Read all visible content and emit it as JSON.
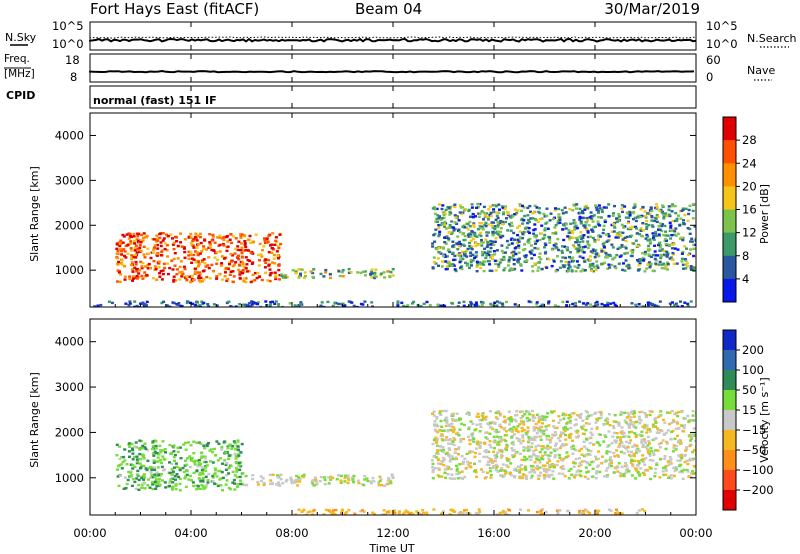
{
  "header": {
    "station": "Fort Hays East (fitACF)",
    "beam": "Beam 04",
    "date": "30/Mar/2019"
  },
  "sky_panel": {
    "left_label": "N.Sky",
    "right_label": "N.Search",
    "left_ticks": [
      "10^5",
      "10^0"
    ],
    "right_ticks": [
      "10^5",
      "10^0"
    ]
  },
  "freq_panel": {
    "left_label_1": "Freq.",
    "left_label_2": "[MHz]",
    "right_label": "Nave",
    "left_ticks": [
      "18",
      "8"
    ],
    "right_ticks": [
      "60",
      "0"
    ]
  },
  "cpid_panel": {
    "label": "CPID",
    "mode_text": "normal (fast) 151 IF"
  },
  "x_axis": {
    "label": "Time UT",
    "ticks": [
      "00:00",
      "04:00",
      "08:00",
      "12:00",
      "16:00",
      "20:00",
      "00:00"
    ]
  },
  "power_colorbar": {
    "label": "Power [dB]",
    "tick_labels": [
      "28",
      "24",
      "20",
      "16",
      "12",
      "8",
      "4"
    ],
    "colors": [
      "#e00000",
      "#ff5000",
      "#ff9000",
      "#f5c518",
      "#7cc44c",
      "#3c9a6a",
      "#2a58a0",
      "#0818e8"
    ]
  },
  "velocity_colorbar": {
    "label": "Velocity [m s⁻¹]",
    "tick_labels": [
      "200",
      "100",
      "50",
      "15",
      "−15",
      "−50",
      "−100",
      "−200"
    ],
    "colors": [
      "#1028c8",
      "#2f6ab0",
      "#2f8b57",
      "#76dd3a",
      "#c8c8c8",
      "#f5b81e",
      "#ff8f1a",
      "#ff4a1a",
      "#e00000"
    ]
  },
  "chart_data": [
    {
      "type": "heatmap",
      "title": "Power",
      "xlabel": "Time UT",
      "ylabel": "Slant Range [km]",
      "xlim": [
        "00:00",
        "24:00"
      ],
      "ylim": [
        180,
        4500
      ],
      "y_ticks": [
        1000,
        2000,
        3000,
        4000
      ],
      "colorbar_label": "Power [dB]",
      "colorbar_range": [
        0,
        32
      ],
      "echo_regions": [
        {
          "x": [
            1.0,
            7.5
          ],
          "y": [
            750,
            1850
          ],
          "power": 26
        },
        {
          "x": [
            7.5,
            12.0
          ],
          "y": [
            850,
            1050
          ],
          "power": 14
        },
        {
          "x": [
            13.5,
            24.0
          ],
          "y": [
            1000,
            2500
          ],
          "power": 10
        },
        {
          "x": [
            0.0,
            24.0
          ],
          "y": [
            200,
            330
          ],
          "power": 6
        }
      ]
    },
    {
      "type": "heatmap",
      "title": "Velocity",
      "xlabel": "Time UT",
      "ylabel": "Slant Range [km]",
      "xlim": [
        "00:00",
        "24:00"
      ],
      "ylim": [
        180,
        4500
      ],
      "y_ticks": [
        1000,
        2000,
        3000,
        4000
      ],
      "colorbar_label": "Velocity [m s⁻¹]",
      "colorbar_range": [
        -250,
        250
      ],
      "echo_regions": [
        {
          "x": [
            1.0,
            6.0
          ],
          "y": [
            750,
            1850
          ],
          "velocity": 40
        },
        {
          "x": [
            6.0,
            12.0
          ],
          "y": [
            850,
            1100
          ],
          "velocity": 0
        },
        {
          "x": [
            13.5,
            24.0
          ],
          "y": [
            1000,
            2500
          ],
          "velocity": 0
        },
        {
          "x": [
            8.0,
            22.0
          ],
          "y": [
            200,
            330
          ],
          "velocity": -30
        }
      ]
    }
  ]
}
